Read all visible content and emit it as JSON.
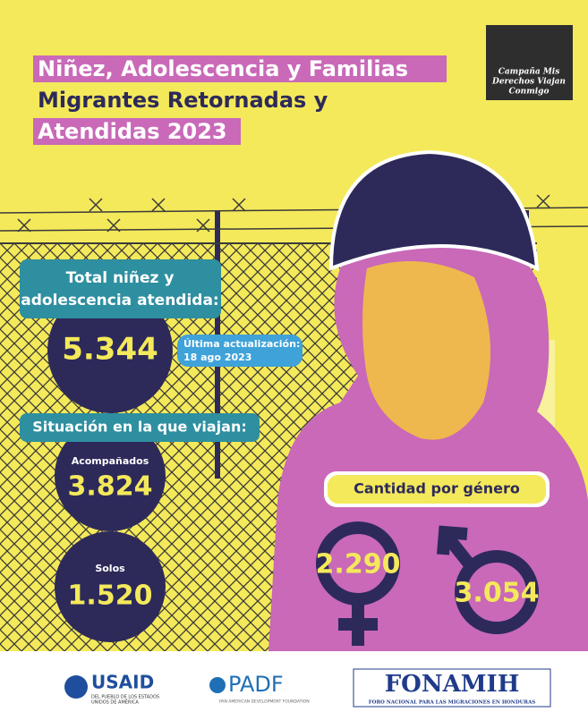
{
  "title": {
    "line1": "Niñez, Adolescencia y Familias",
    "line2": "Migrantes Retornadas y",
    "line3": "Atendidas 2023"
  },
  "campaign": {
    "line1": "Campaña Mis",
    "line2": "Derechos Viajan",
    "line3": "Conmigo"
  },
  "total": {
    "label_line1": "Total niñez y",
    "label_line2": "adolescencia atendida:",
    "value": "5.344",
    "update_line1": "Última actualización:",
    "update_line2": "18 ago 2023"
  },
  "situation": {
    "heading": "Situación en la que viajan:",
    "accompanied_label": "Acompañados",
    "accompanied_value": "3.824",
    "alone_label": "Solos",
    "alone_value": "1.520"
  },
  "gender": {
    "heading": "Cantidad por género",
    "female_value": "2.290",
    "male_value": "3.054"
  },
  "footer": {
    "usaid": "USAID",
    "usaid_sub1": "DEL PUEBLO DE LOS ESTADOS",
    "usaid_sub2": "UNIDOS DE AMÉRICA",
    "padf": "PADF",
    "padf_sub": "PAN AMERICAN DEVELOPMENT FOUNDATION",
    "fonamih": "FONAMIH",
    "fonamih_sub": "FORO NACIONAL PARA LAS MIGRACIONES EN HONDURAS"
  }
}
